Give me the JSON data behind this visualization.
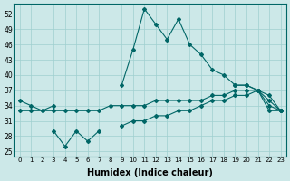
{
  "x": [
    0,
    1,
    2,
    3,
    4,
    5,
    6,
    7,
    8,
    9,
    10,
    11,
    12,
    13,
    14,
    15,
    16,
    17,
    18,
    19,
    20,
    21,
    22,
    23
  ],
  "line_top": [
    null,
    null,
    null,
    null,
    null,
    null,
    null,
    null,
    null,
    38,
    45,
    53,
    50,
    47,
    51,
    46,
    44,
    41,
    40,
    38,
    38,
    37,
    35,
    33
  ],
  "line_mid_upper": [
    35,
    34,
    33,
    34,
    null,
    null,
    null,
    null,
    null,
    null,
    null,
    null,
    null,
    null,
    null,
    null,
    null,
    null,
    null,
    38,
    38,
    37,
    36,
    33
  ],
  "line_mid_lower": [
    33,
    33,
    33,
    33,
    33,
    33,
    33,
    33,
    34,
    34,
    34,
    34,
    35,
    35,
    35,
    35,
    35,
    36,
    36,
    37,
    37,
    37,
    34,
    33
  ],
  "line_low": [
    null,
    null,
    null,
    29,
    26,
    29,
    27,
    29,
    null,
    null,
    null,
    null,
    null,
    null,
    null,
    null,
    null,
    null,
    null,
    null,
    null,
    null,
    null,
    null
  ],
  "line_bottom": [
    null,
    null,
    null,
    null,
    null,
    null,
    null,
    null,
    null,
    30,
    31,
    31,
    32,
    32,
    33,
    33,
    34,
    35,
    35,
    36,
    36,
    37,
    33,
    33
  ],
  "bg_color": "#cce8e8",
  "line_color": "#006666",
  "grid_color": "#9fcfcf",
  "xlabel": "Humidex (Indice chaleur)",
  "xlabel_fontsize": 7,
  "ylabel_ticks": [
    25,
    28,
    31,
    34,
    37,
    40,
    43,
    46,
    49,
    52
  ],
  "xticks": [
    0,
    1,
    2,
    3,
    4,
    5,
    6,
    7,
    8,
    9,
    10,
    11,
    12,
    13,
    14,
    15,
    16,
    17,
    18,
    19,
    20,
    21,
    22,
    23
  ],
  "ylim": [
    24,
    54
  ],
  "xlim": [
    -0.5,
    23.5
  ],
  "markersize": 2.0,
  "linewidth": 0.8
}
